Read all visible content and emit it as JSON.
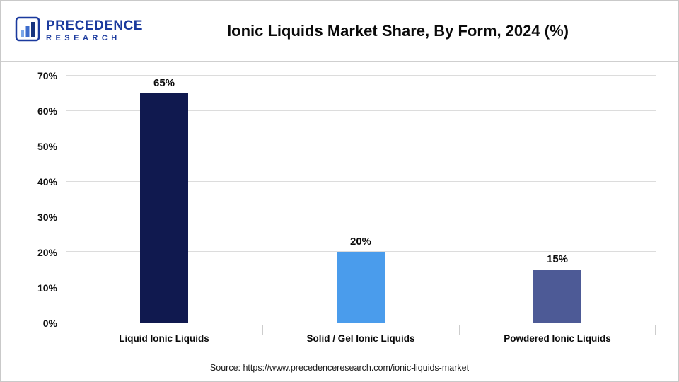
{
  "header": {
    "logo": {
      "line1": "PRECEDENCE",
      "line2": "RESEARCH",
      "icon": "bar-chart-logo-icon",
      "brand_color": "#1b3a9e"
    },
    "title": "Ionic Liquids Market Share, By Form, 2024 (%)"
  },
  "chart_data": {
    "type": "bar",
    "title": "Ionic Liquids Market Share, By Form, 2024 (%)",
    "categories": [
      "Liquid Ionic Liquids",
      "Solid / Gel Ionic Liquids",
      "Powdered Ionic Liquids"
    ],
    "values": [
      65,
      20,
      15
    ],
    "value_labels": [
      "65%",
      "20%",
      "15%"
    ],
    "bar_colors": [
      "#10194f",
      "#4a9cec",
      "#4d5a96"
    ],
    "xlabel": "",
    "ylabel": "",
    "ylim": [
      0,
      70
    ],
    "yticks": [
      0,
      10,
      20,
      30,
      40,
      50,
      60,
      70
    ],
    "ytick_labels": [
      "0%",
      "10%",
      "20%",
      "30%",
      "40%",
      "50%",
      "60%",
      "70%"
    ],
    "grid": "horizontal",
    "legend": "none"
  },
  "footer": {
    "source": "Source: https://www.precedenceresearch.com/ionic-liquids-market"
  }
}
